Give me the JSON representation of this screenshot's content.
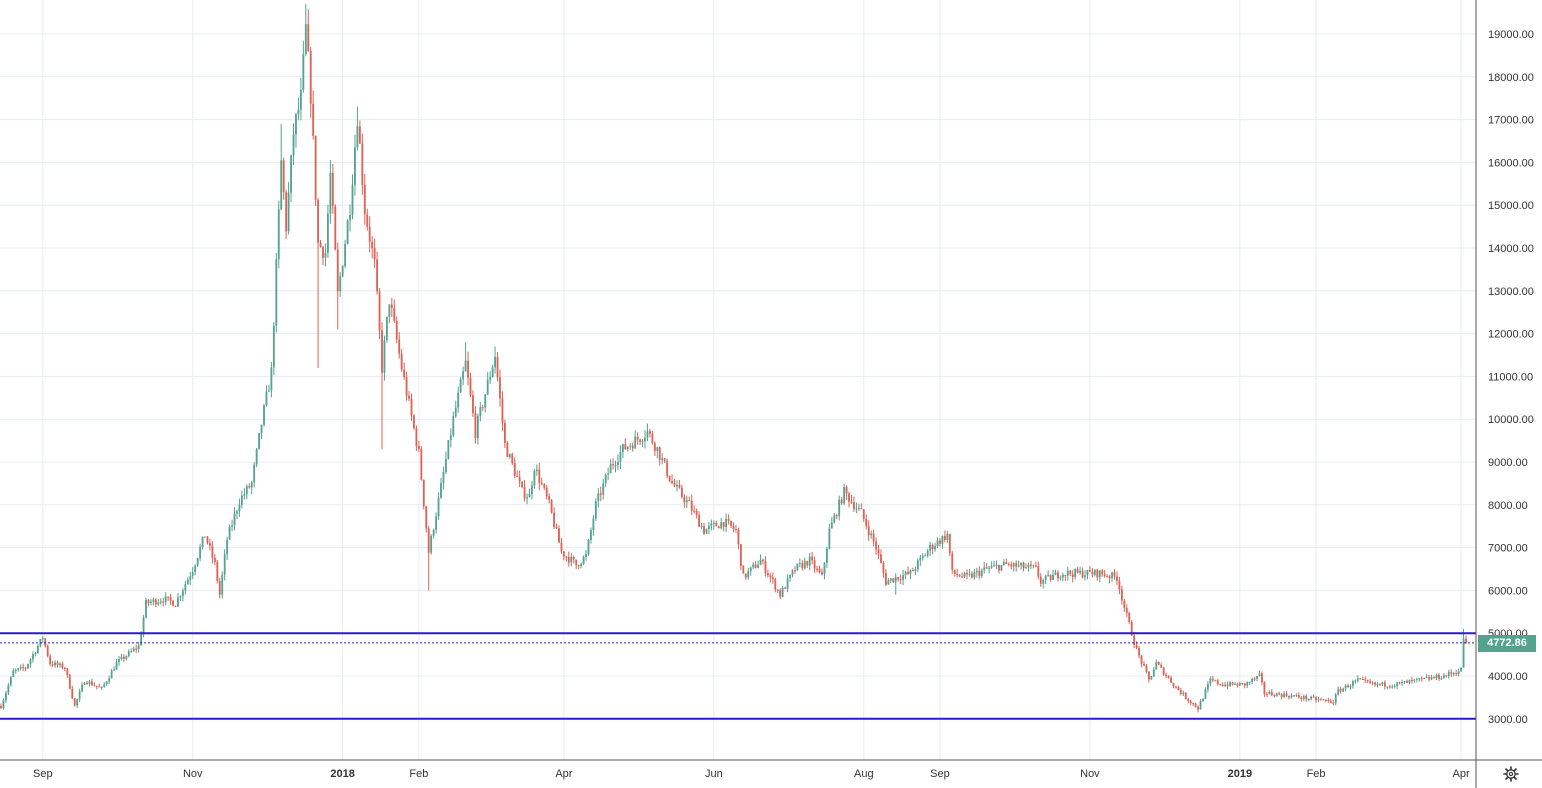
{
  "chart_data": {
    "type": "candlestick",
    "title": "",
    "xlabel": "",
    "ylabel": "",
    "ylim": [
      2200,
      19800
    ],
    "y_ticks": [
      3000,
      4000,
      5000,
      6000,
      7000,
      8000,
      9000,
      10000,
      11000,
      12000,
      13000,
      14000,
      15000,
      16000,
      17000,
      18000,
      19000
    ],
    "y_tick_labels": [
      "3000.00",
      "4000.00",
      "5000.00",
      "6000.00",
      "7000.00",
      "8000.00",
      "9000.00",
      "10000.00",
      "11000.00",
      "12000.00",
      "13000.00",
      "14000.00",
      "15000.00",
      "16000.00",
      "17000.00",
      "18000.00",
      "19000.00"
    ],
    "x_start": "2017-08-15",
    "x_end": "2019-04-03",
    "x_ticks": [
      {
        "label": "Sep",
        "date": "2017-09-01",
        "bold": false
      },
      {
        "label": "Nov",
        "date": "2017-11-01",
        "bold": false
      },
      {
        "label": "2018",
        "date": "2018-01-01",
        "bold": true
      },
      {
        "label": "Feb",
        "date": "2018-02-01",
        "bold": false
      },
      {
        "label": "Apr",
        "date": "2018-04-01",
        "bold": false
      },
      {
        "label": "Jun",
        "date": "2018-06-01",
        "bold": false
      },
      {
        "label": "Aug",
        "date": "2018-08-01",
        "bold": false
      },
      {
        "label": "Sep",
        "date": "2018-09-01",
        "bold": false
      },
      {
        "label": "Nov",
        "date": "2018-11-01",
        "bold": false
      },
      {
        "label": "2019",
        "date": "2019-01-01",
        "bold": true
      },
      {
        "label": "Feb",
        "date": "2019-02-01",
        "bold": false
      },
      {
        "label": "Apr",
        "date": "2019-04-01",
        "bold": false
      }
    ],
    "close_path": [
      [
        "2017-08-15",
        3300
      ],
      [
        "2017-08-20",
        4100
      ],
      [
        "2017-08-25",
        4200
      ],
      [
        "2017-09-01",
        4900
      ],
      [
        "2017-09-04",
        4300
      ],
      [
        "2017-09-10",
        4200
      ],
      [
        "2017-09-14",
        3300
      ],
      [
        "2017-09-18",
        3900
      ],
      [
        "2017-09-25",
        3700
      ],
      [
        "2017-10-01",
        4300
      ],
      [
        "2017-10-10",
        4700
      ],
      [
        "2017-10-13",
        5700
      ],
      [
        "2017-10-20",
        5800
      ],
      [
        "2017-10-25",
        5700
      ],
      [
        "2017-11-01",
        6500
      ],
      [
        "2017-11-06",
        7300
      ],
      [
        "2017-11-10",
        6600
      ],
      [
        "2017-11-12",
        5900
      ],
      [
        "2017-11-15",
        7200
      ],
      [
        "2017-11-20",
        8100
      ],
      [
        "2017-11-25",
        8500
      ],
      [
        "2017-11-29",
        9900
      ],
      [
        "2017-12-03",
        11100
      ],
      [
        "2017-12-07",
        16000
      ],
      [
        "2017-12-09",
        14500
      ],
      [
        "2017-12-12",
        16700
      ],
      [
        "2017-12-15",
        17500
      ],
      [
        "2017-12-17",
        19100
      ],
      [
        "2017-12-19",
        17600
      ],
      [
        "2017-12-22",
        14100
      ],
      [
        "2017-12-25",
        13900
      ],
      [
        "2017-12-27",
        15700
      ],
      [
        "2017-12-30",
        12900
      ],
      [
        "2018-01-04",
        15000
      ],
      [
        "2018-01-07",
        17100
      ],
      [
        "2018-01-10",
        14900
      ],
      [
        "2018-01-14",
        13600
      ],
      [
        "2018-01-17",
        11200
      ],
      [
        "2018-01-20",
        12800
      ],
      [
        "2018-01-25",
        11200
      ],
      [
        "2018-02-01",
        9200
      ],
      [
        "2018-02-05",
        6900
      ],
      [
        "2018-02-09",
        8100
      ],
      [
        "2018-02-15",
        10000
      ],
      [
        "2018-02-20",
        11300
      ],
      [
        "2018-02-24",
        9700
      ],
      [
        "2018-03-04",
        11500
      ],
      [
        "2018-03-08",
        9400
      ],
      [
        "2018-03-15",
        8300
      ],
      [
        "2018-03-18",
        8200
      ],
      [
        "2018-03-20",
        8900
      ],
      [
        "2018-03-26",
        8000
      ],
      [
        "2018-03-31",
        6900
      ],
      [
        "2018-04-06",
        6600
      ],
      [
        "2018-04-10",
        6800
      ],
      [
        "2018-04-14",
        8000
      ],
      [
        "2018-04-20",
        8900
      ],
      [
        "2018-04-25",
        9300
      ],
      [
        "2018-05-05",
        9700
      ],
      [
        "2018-05-09",
        9300
      ],
      [
        "2018-05-15",
        8500
      ],
      [
        "2018-05-22",
        8000
      ],
      [
        "2018-05-28",
        7400
      ],
      [
        "2018-06-05",
        7600
      ],
      [
        "2018-06-10",
        7400
      ],
      [
        "2018-06-13",
        6300
      ],
      [
        "2018-06-20",
        6700
      ],
      [
        "2018-06-28",
        5900
      ],
      [
        "2018-07-04",
        6500
      ],
      [
        "2018-07-10",
        6700
      ],
      [
        "2018-07-15",
        6300
      ],
      [
        "2018-07-18",
        7400
      ],
      [
        "2018-07-24",
        8300
      ],
      [
        "2018-07-31",
        7800
      ],
      [
        "2018-08-06",
        7000
      ],
      [
        "2018-08-10",
        6200
      ],
      [
        "2018-08-14",
        6300
      ],
      [
        "2018-08-20",
        6400
      ],
      [
        "2018-08-28",
        7000
      ],
      [
        "2018-09-04",
        7300
      ],
      [
        "2018-09-06",
        6400
      ],
      [
        "2018-09-12",
        6300
      ],
      [
        "2018-09-20",
        6500
      ],
      [
        "2018-09-28",
        6600
      ],
      [
        "2018-10-10",
        6500
      ],
      [
        "2018-10-12",
        6200
      ],
      [
        "2018-10-20",
        6400
      ],
      [
        "2018-11-05",
        6400
      ],
      [
        "2018-11-12",
        6300
      ],
      [
        "2018-11-15",
        5600
      ],
      [
        "2018-11-20",
        4600
      ],
      [
        "2018-11-25",
        3900
      ],
      [
        "2018-11-28",
        4300
      ],
      [
        "2018-12-05",
        3800
      ],
      [
        "2018-12-10",
        3500
      ],
      [
        "2018-12-15",
        3250
      ],
      [
        "2018-12-20",
        3900
      ],
      [
        "2018-12-25",
        3800
      ],
      [
        "2019-01-03",
        3800
      ],
      [
        "2019-01-09",
        4000
      ],
      [
        "2019-01-11",
        3600
      ],
      [
        "2019-01-20",
        3550
      ],
      [
        "2019-02-01",
        3450
      ],
      [
        "2019-02-08",
        3400
      ],
      [
        "2019-02-10",
        3650
      ],
      [
        "2019-02-18",
        3900
      ],
      [
        "2019-02-24",
        3800
      ],
      [
        "2019-03-05",
        3800
      ],
      [
        "2019-03-15",
        3900
      ],
      [
        "2019-03-25",
        4000
      ],
      [
        "2019-03-30",
        4100
      ],
      [
        "2019-04-01",
        4150
      ],
      [
        "2019-04-02",
        4900
      ],
      [
        "2019-04-03",
        4772.86
      ]
    ],
    "spikes": [
      {
        "date": "2017-12-07",
        "high": 16900
      },
      {
        "date": "2017-12-17",
        "high": 19700
      },
      {
        "date": "2017-12-22",
        "low": 11200
      },
      {
        "date": "2017-12-30",
        "low": 12100
      },
      {
        "date": "2018-01-07",
        "high": 17300
      },
      {
        "date": "2018-01-17",
        "low": 9300
      },
      {
        "date": "2018-02-05",
        "low": 6000
      },
      {
        "date": "2018-02-20",
        "high": 11800
      },
      {
        "date": "2018-03-04",
        "high": 11700
      },
      {
        "date": "2018-04-06",
        "low": 6500
      },
      {
        "date": "2018-05-05",
        "high": 9900
      },
      {
        "date": "2018-06-28",
        "low": 5800
      },
      {
        "date": "2018-07-24",
        "high": 8500
      },
      {
        "date": "2018-08-14",
        "low": 5900
      },
      {
        "date": "2018-12-15",
        "low": 3150
      },
      {
        "date": "2019-04-02",
        "high": 5100
      }
    ],
    "horizontal_lines": [
      {
        "value": 5000,
        "color": "#2a1bd0"
      },
      {
        "value": 3000,
        "color": "#2a1bd0"
      }
    ],
    "last_price_line": {
      "value": 4772.86,
      "color": "#2a1bd0"
    },
    "last_price_label": "4772.86",
    "colors": {
      "up": "#53a38e",
      "down": "#df6154",
      "grid": "#e8edf2",
      "axis_text": "#333333",
      "level_line": "#2a1bd0",
      "price_tag": "#53a38e"
    },
    "grid": true,
    "legend": "none"
  },
  "toolbar": {
    "settings_icon": "gear-icon"
  }
}
